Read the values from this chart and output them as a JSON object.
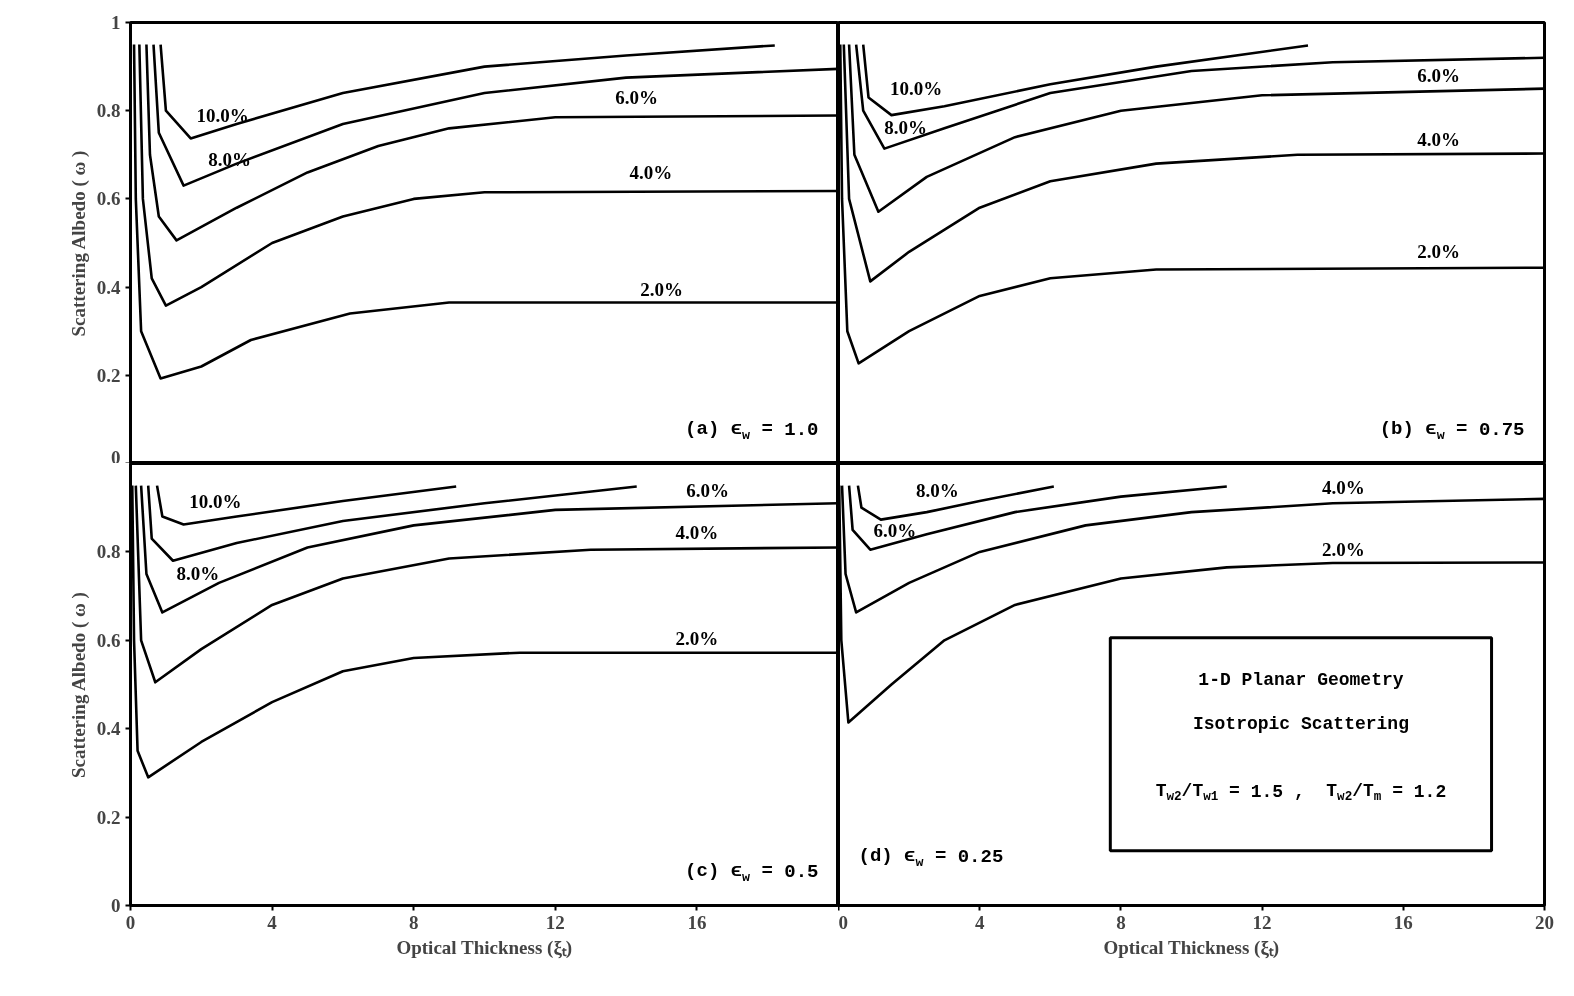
{
  "chart_data": [
    {
      "type": "line",
      "ylabel": "Scattering Albedo ( ω )",
      "xlim": [
        0,
        20
      ],
      "ylim": [
        0,
        1
      ],
      "yticks": [
        0,
        0.2,
        0.4,
        0.6,
        0.8,
        1
      ],
      "tick_labels": "y",
      "series": [
        {
          "name": "2.0%",
          "color": "#000000",
          "x": [
            0.1,
            0.15,
            0.3,
            0.85,
            2,
            3.4,
            6.2,
            9,
            20
          ],
          "values": [
            0.95,
            0.6,
            0.3,
            0.193,
            0.22,
            0.28,
            0.34,
            0.365,
            0.365
          ]
        },
        {
          "name": "4.0%",
          "color": "#000000",
          "x": [
            0.25,
            0.35,
            0.6,
            1.0,
            2,
            4,
            6,
            8,
            10,
            20
          ],
          "values": [
            0.95,
            0.6,
            0.42,
            0.358,
            0.4,
            0.5,
            0.56,
            0.6,
            0.615,
            0.618
          ]
        },
        {
          "name": "6.0%",
          "color": "#000000",
          "x": [
            0.45,
            0.55,
            0.8,
            1.3,
            3,
            5,
            7,
            9,
            12,
            20
          ],
          "values": [
            0.95,
            0.7,
            0.56,
            0.506,
            0.58,
            0.66,
            0.72,
            0.76,
            0.785,
            0.789
          ]
        },
        {
          "name": "8.0%",
          "color": "#000000",
          "x": [
            0.65,
            0.8,
            1.5,
            3,
            6,
            10,
            14,
            20
          ],
          "values": [
            0.95,
            0.75,
            0.63,
            0.68,
            0.77,
            0.84,
            0.875,
            0.895
          ]
        },
        {
          "name": "10.0%",
          "color": "#000000",
          "x": [
            0.85,
            1.0,
            1.7,
            3,
            6,
            10,
            14,
            18.2
          ],
          "values": [
            0.95,
            0.8,
            0.737,
            0.77,
            0.84,
            0.9,
            0.925,
            0.948
          ]
        }
      ],
      "annotations": [
        "(a) ϵ$_{w}$ = 1.0"
      ]
    },
    {
      "type": "line",
      "xlim": [
        0,
        20
      ],
      "ylim": [
        0,
        1
      ],
      "tick_labels": false,
      "series": [
        {
          "name": "2.0%",
          "color": "#000000",
          "x": [
            0.05,
            0.1,
            0.25,
            0.57,
            2,
            4,
            6,
            9,
            20
          ],
          "values": [
            0.95,
            0.6,
            0.3,
            0.227,
            0.3,
            0.38,
            0.42,
            0.44,
            0.444
          ]
        },
        {
          "name": "4.0%",
          "color": "#000000",
          "x": [
            0.15,
            0.3,
            0.9,
            2,
            4,
            6,
            9,
            13,
            20
          ],
          "values": [
            0.95,
            0.6,
            0.413,
            0.48,
            0.58,
            0.64,
            0.68,
            0.7,
            0.703
          ]
        },
        {
          "name": "6.0%",
          "color": "#000000",
          "x": [
            0.3,
            0.45,
            1.13,
            2.5,
            5,
            8,
            12,
            20
          ],
          "values": [
            0.95,
            0.7,
            0.571,
            0.65,
            0.74,
            0.8,
            0.835,
            0.85
          ]
        },
        {
          "name": "8.0%",
          "color": "#000000",
          "x": [
            0.5,
            0.7,
            1.3,
            3,
            6,
            10,
            14,
            20
          ],
          "values": [
            0.95,
            0.8,
            0.714,
            0.76,
            0.84,
            0.89,
            0.91,
            0.92
          ]
        },
        {
          "name": "10.0%",
          "color": "#000000",
          "x": [
            0.7,
            0.85,
            1.5,
            3,
            6,
            9,
            13.3
          ],
          "values": [
            0.95,
            0.83,
            0.79,
            0.81,
            0.86,
            0.9,
            0.948
          ]
        }
      ],
      "annotations": [
        "(b) ϵ$_{w}$ = 0.75"
      ]
    },
    {
      "type": "line",
      "xlabel": "Optical Thickness (ξₜ)",
      "ylabel": "Scattering Albedo ( ω )",
      "xlim": [
        0,
        20
      ],
      "ylim": [
        0,
        1
      ],
      "xticks": [
        0,
        4,
        8,
        12,
        16
      ],
      "yticks": [
        0,
        0.2,
        0.4,
        0.6,
        0.8
      ],
      "series": [
        {
          "name": "2.0%",
          "color": "#000000",
          "x": [
            0.05,
            0.1,
            0.2,
            0.5,
            2,
            4,
            6,
            8,
            11,
            20
          ],
          "values": [
            0.95,
            0.6,
            0.35,
            0.29,
            0.37,
            0.46,
            0.53,
            0.56,
            0.572,
            0.572
          ]
        },
        {
          "name": "4.0%",
          "color": "#000000",
          "x": [
            0.15,
            0.3,
            0.7,
            2,
            4,
            6,
            9,
            13,
            20
          ],
          "values": [
            0.95,
            0.6,
            0.505,
            0.58,
            0.68,
            0.74,
            0.785,
            0.805,
            0.81
          ]
        },
        {
          "name": "6.0%",
          "color": "#000000",
          "x": [
            0.3,
            0.45,
            0.9,
            2.5,
            5,
            8,
            12,
            20
          ],
          "values": [
            0.95,
            0.75,
            0.663,
            0.73,
            0.81,
            0.86,
            0.895,
            0.91
          ]
        },
        {
          "name": "8.0%",
          "color": "#000000",
          "x": [
            0.5,
            0.6,
            1.2,
            3,
            6,
            10,
            14.3
          ],
          "values": [
            0.95,
            0.83,
            0.78,
            0.82,
            0.87,
            0.91,
            0.948
          ]
        },
        {
          "name": "10.0%",
          "color": "#000000",
          "x": [
            0.75,
            0.9,
            1.5,
            3,
            6,
            9.2
          ],
          "values": [
            0.95,
            0.88,
            0.862,
            0.88,
            0.915,
            0.948
          ]
        }
      ],
      "annotations": [
        "(c) ϵ$_{w}$ = 0.5"
      ]
    },
    {
      "type": "line",
      "xlabel": "Optical Thickness (ξₜ)",
      "xlim": [
        0,
        20
      ],
      "ylim": [
        0,
        1
      ],
      "xticks": [
        0,
        4,
        8,
        12,
        16,
        20
      ],
      "tick_labels": "x",
      "series": [
        {
          "name": "2.0%",
          "color": "#000000",
          "x": [
            0.02,
            0.08,
            0.28,
            1.5,
            3,
            5,
            8,
            11,
            14,
            20
          ],
          "values": [
            0.95,
            0.6,
            0.414,
            0.5,
            0.6,
            0.68,
            0.74,
            0.765,
            0.775,
            0.776
          ]
        },
        {
          "name": "4.0%",
          "color": "#000000",
          "x": [
            0.1,
            0.2,
            0.5,
            2,
            4,
            7,
            10,
            14,
            20
          ],
          "values": [
            0.95,
            0.75,
            0.663,
            0.73,
            0.8,
            0.86,
            0.89,
            0.91,
            0.92
          ]
        },
        {
          "name": "6.0%",
          "color": "#000000",
          "x": [
            0.3,
            0.4,
            0.9,
            2.5,
            5,
            8,
            11
          ],
          "values": [
            0.95,
            0.85,
            0.805,
            0.84,
            0.89,
            0.925,
            0.948
          ]
        },
        {
          "name": "8.0%",
          "color": "#000000",
          "x": [
            0.55,
            0.65,
            1.2,
            2.5,
            4,
            6.1
          ],
          "values": [
            0.95,
            0.9,
            0.873,
            0.89,
            0.915,
            0.948
          ]
        }
      ],
      "annotations": [
        "(d) ϵ$_{w}$ = 0.25",
        "1-D Planar Geometry",
        "Isotropic Scattering",
        "T$_{w2}$/T$_{w1}$ = 1.5 ,  T$_{w2}$/T$_{m}$ = 1.2"
      ]
    }
  ]
}
